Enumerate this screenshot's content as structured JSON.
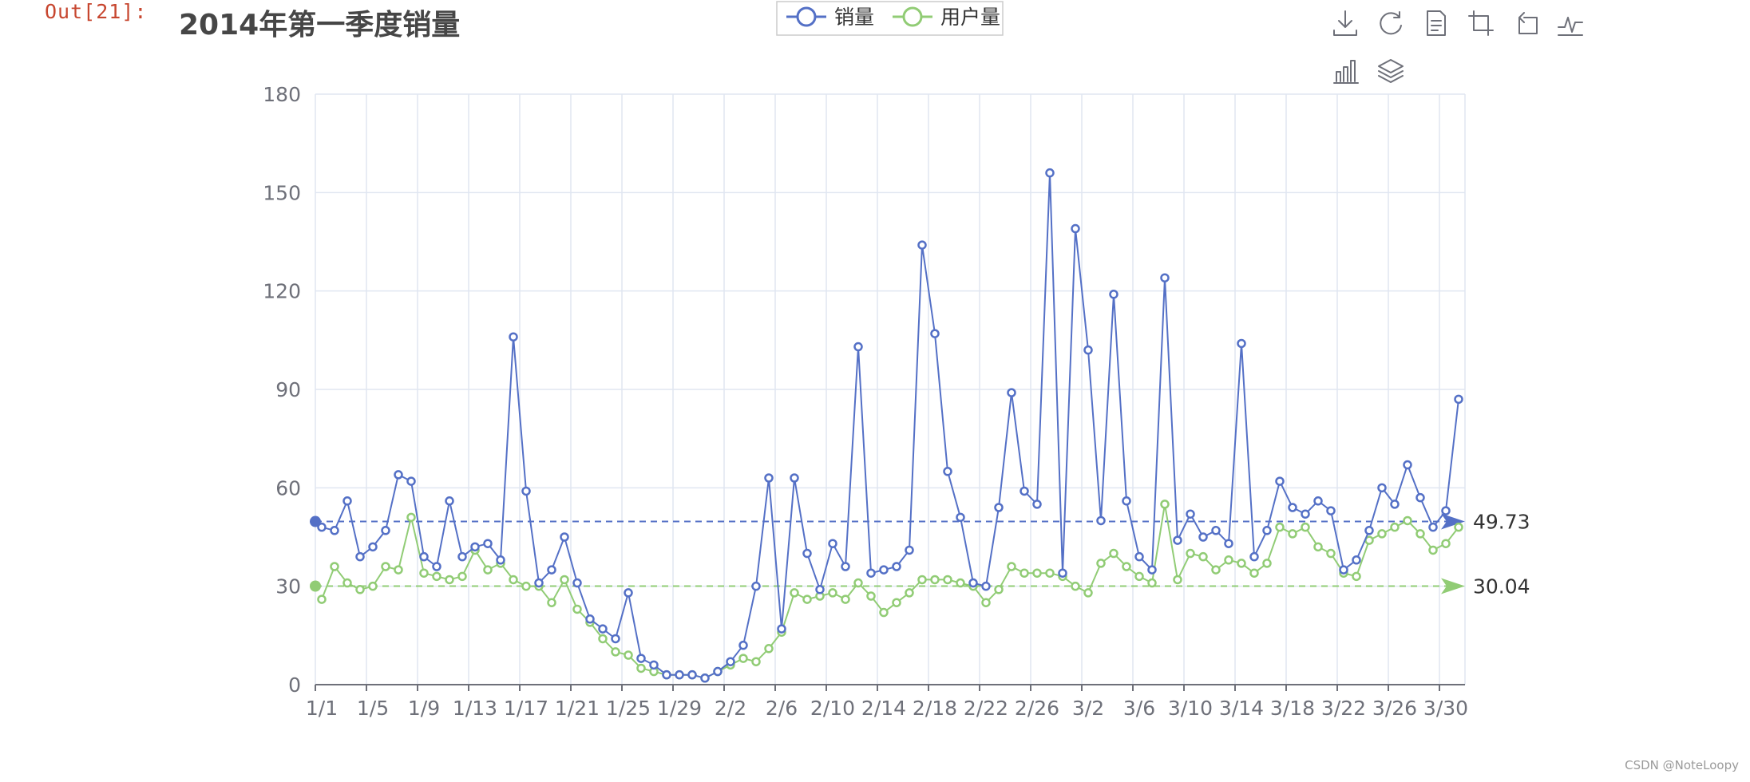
{
  "cell": {
    "prompt": "Out[21]:"
  },
  "watermark": "CSDN @NoteLoopy",
  "toolbar": {
    "icons": [
      "download-icon",
      "refresh-icon",
      "data-view-icon",
      "zoom-icon",
      "zoom-reset-icon",
      "line-chart-icon",
      "bar-chart-icon",
      "stack-icon"
    ]
  },
  "colors": {
    "sales": "#5470c6",
    "users": "#91cc75",
    "grid": "#e0e6f1",
    "axis": "#6e7079"
  },
  "chart_data": {
    "type": "line",
    "title": "2014年第一季度销量",
    "xlabel": "",
    "ylabel": "",
    "ylim": [
      0,
      180
    ],
    "yticks": [
      0,
      30,
      60,
      90,
      120,
      150,
      180
    ],
    "grid": true,
    "legend_position": "top-center",
    "x_tick_labels": [
      "1/1",
      "1/5",
      "1/9",
      "1/13",
      "1/17",
      "1/21",
      "1/25",
      "1/29",
      "2/2",
      "2/6",
      "2/10",
      "2/14",
      "2/18",
      "2/22",
      "2/26",
      "3/2",
      "3/6",
      "3/10",
      "3/14",
      "3/18",
      "3/22",
      "3/26",
      "3/30"
    ],
    "x": [
      "1/1",
      "1/2",
      "1/3",
      "1/4",
      "1/5",
      "1/6",
      "1/7",
      "1/8",
      "1/9",
      "1/10",
      "1/11",
      "1/12",
      "1/13",
      "1/14",
      "1/15",
      "1/16",
      "1/17",
      "1/18",
      "1/19",
      "1/20",
      "1/21",
      "1/22",
      "1/23",
      "1/24",
      "1/25",
      "1/26",
      "1/27",
      "1/28",
      "1/29",
      "1/30",
      "1/31",
      "2/1",
      "2/2",
      "2/3",
      "2/4",
      "2/5",
      "2/6",
      "2/7",
      "2/8",
      "2/9",
      "2/10",
      "2/11",
      "2/12",
      "2/13",
      "2/14",
      "2/15",
      "2/16",
      "2/17",
      "2/18",
      "2/19",
      "2/20",
      "2/21",
      "2/22",
      "2/23",
      "2/24",
      "2/25",
      "2/26",
      "2/27",
      "2/28",
      "3/1",
      "3/2",
      "3/3",
      "3/4",
      "3/5",
      "3/6",
      "3/7",
      "3/8",
      "3/9",
      "3/10",
      "3/11",
      "3/12",
      "3/13",
      "3/14",
      "3/15",
      "3/16",
      "3/17",
      "3/18",
      "3/19",
      "3/20",
      "3/21",
      "3/22",
      "3/23",
      "3/24",
      "3/25",
      "3/26",
      "3/27",
      "3/28",
      "3/29",
      "3/30",
      "3/31"
    ],
    "series": [
      {
        "name": "销量",
        "color": "#5470c6",
        "mark_line_label": "49.73",
        "mark_line_value": 49.73,
        "values": [
          48,
          47,
          56,
          39,
          42,
          47,
          64,
          62,
          39,
          36,
          56,
          39,
          42,
          43,
          38,
          106,
          59,
          31,
          35,
          45,
          31,
          20,
          17,
          14,
          28,
          8,
          6,
          3,
          3,
          3,
          2,
          4,
          7,
          12,
          30,
          63,
          17,
          63,
          40,
          29,
          43,
          36,
          103,
          34,
          35,
          36,
          41,
          134,
          107,
          65,
          51,
          31,
          30,
          54,
          89,
          59,
          55,
          156,
          34,
          139,
          102,
          50,
          119,
          56,
          39,
          35,
          124,
          44,
          52,
          45,
          47,
          43,
          104,
          39,
          47,
          62,
          54,
          52,
          56,
          53,
          35,
          38,
          47,
          60,
          55,
          67,
          57,
          48,
          53,
          87
        ]
      },
      {
        "name": "用户量",
        "color": "#91cc75",
        "mark_line_label": "30.04",
        "mark_line_value": 30.04,
        "values": [
          26,
          36,
          31,
          29,
          30,
          36,
          35,
          51,
          34,
          33,
          32,
          33,
          41,
          35,
          37,
          32,
          30,
          30,
          25,
          32,
          23,
          19,
          14,
          10,
          9,
          5,
          4,
          3,
          3,
          3,
          2,
          4,
          6,
          8,
          7,
          11,
          16,
          28,
          26,
          27,
          28,
          26,
          31,
          27,
          22,
          25,
          28,
          32,
          32,
          32,
          31,
          30,
          25,
          29,
          36,
          34,
          34,
          34,
          33,
          30,
          28,
          37,
          40,
          36,
          33,
          31,
          55,
          32,
          40,
          39,
          35,
          38,
          37,
          34,
          37,
          48,
          46,
          48,
          42,
          40,
          34,
          33,
          44,
          46,
          48,
          50,
          46,
          41,
          43,
          48
        ]
      }
    ]
  }
}
